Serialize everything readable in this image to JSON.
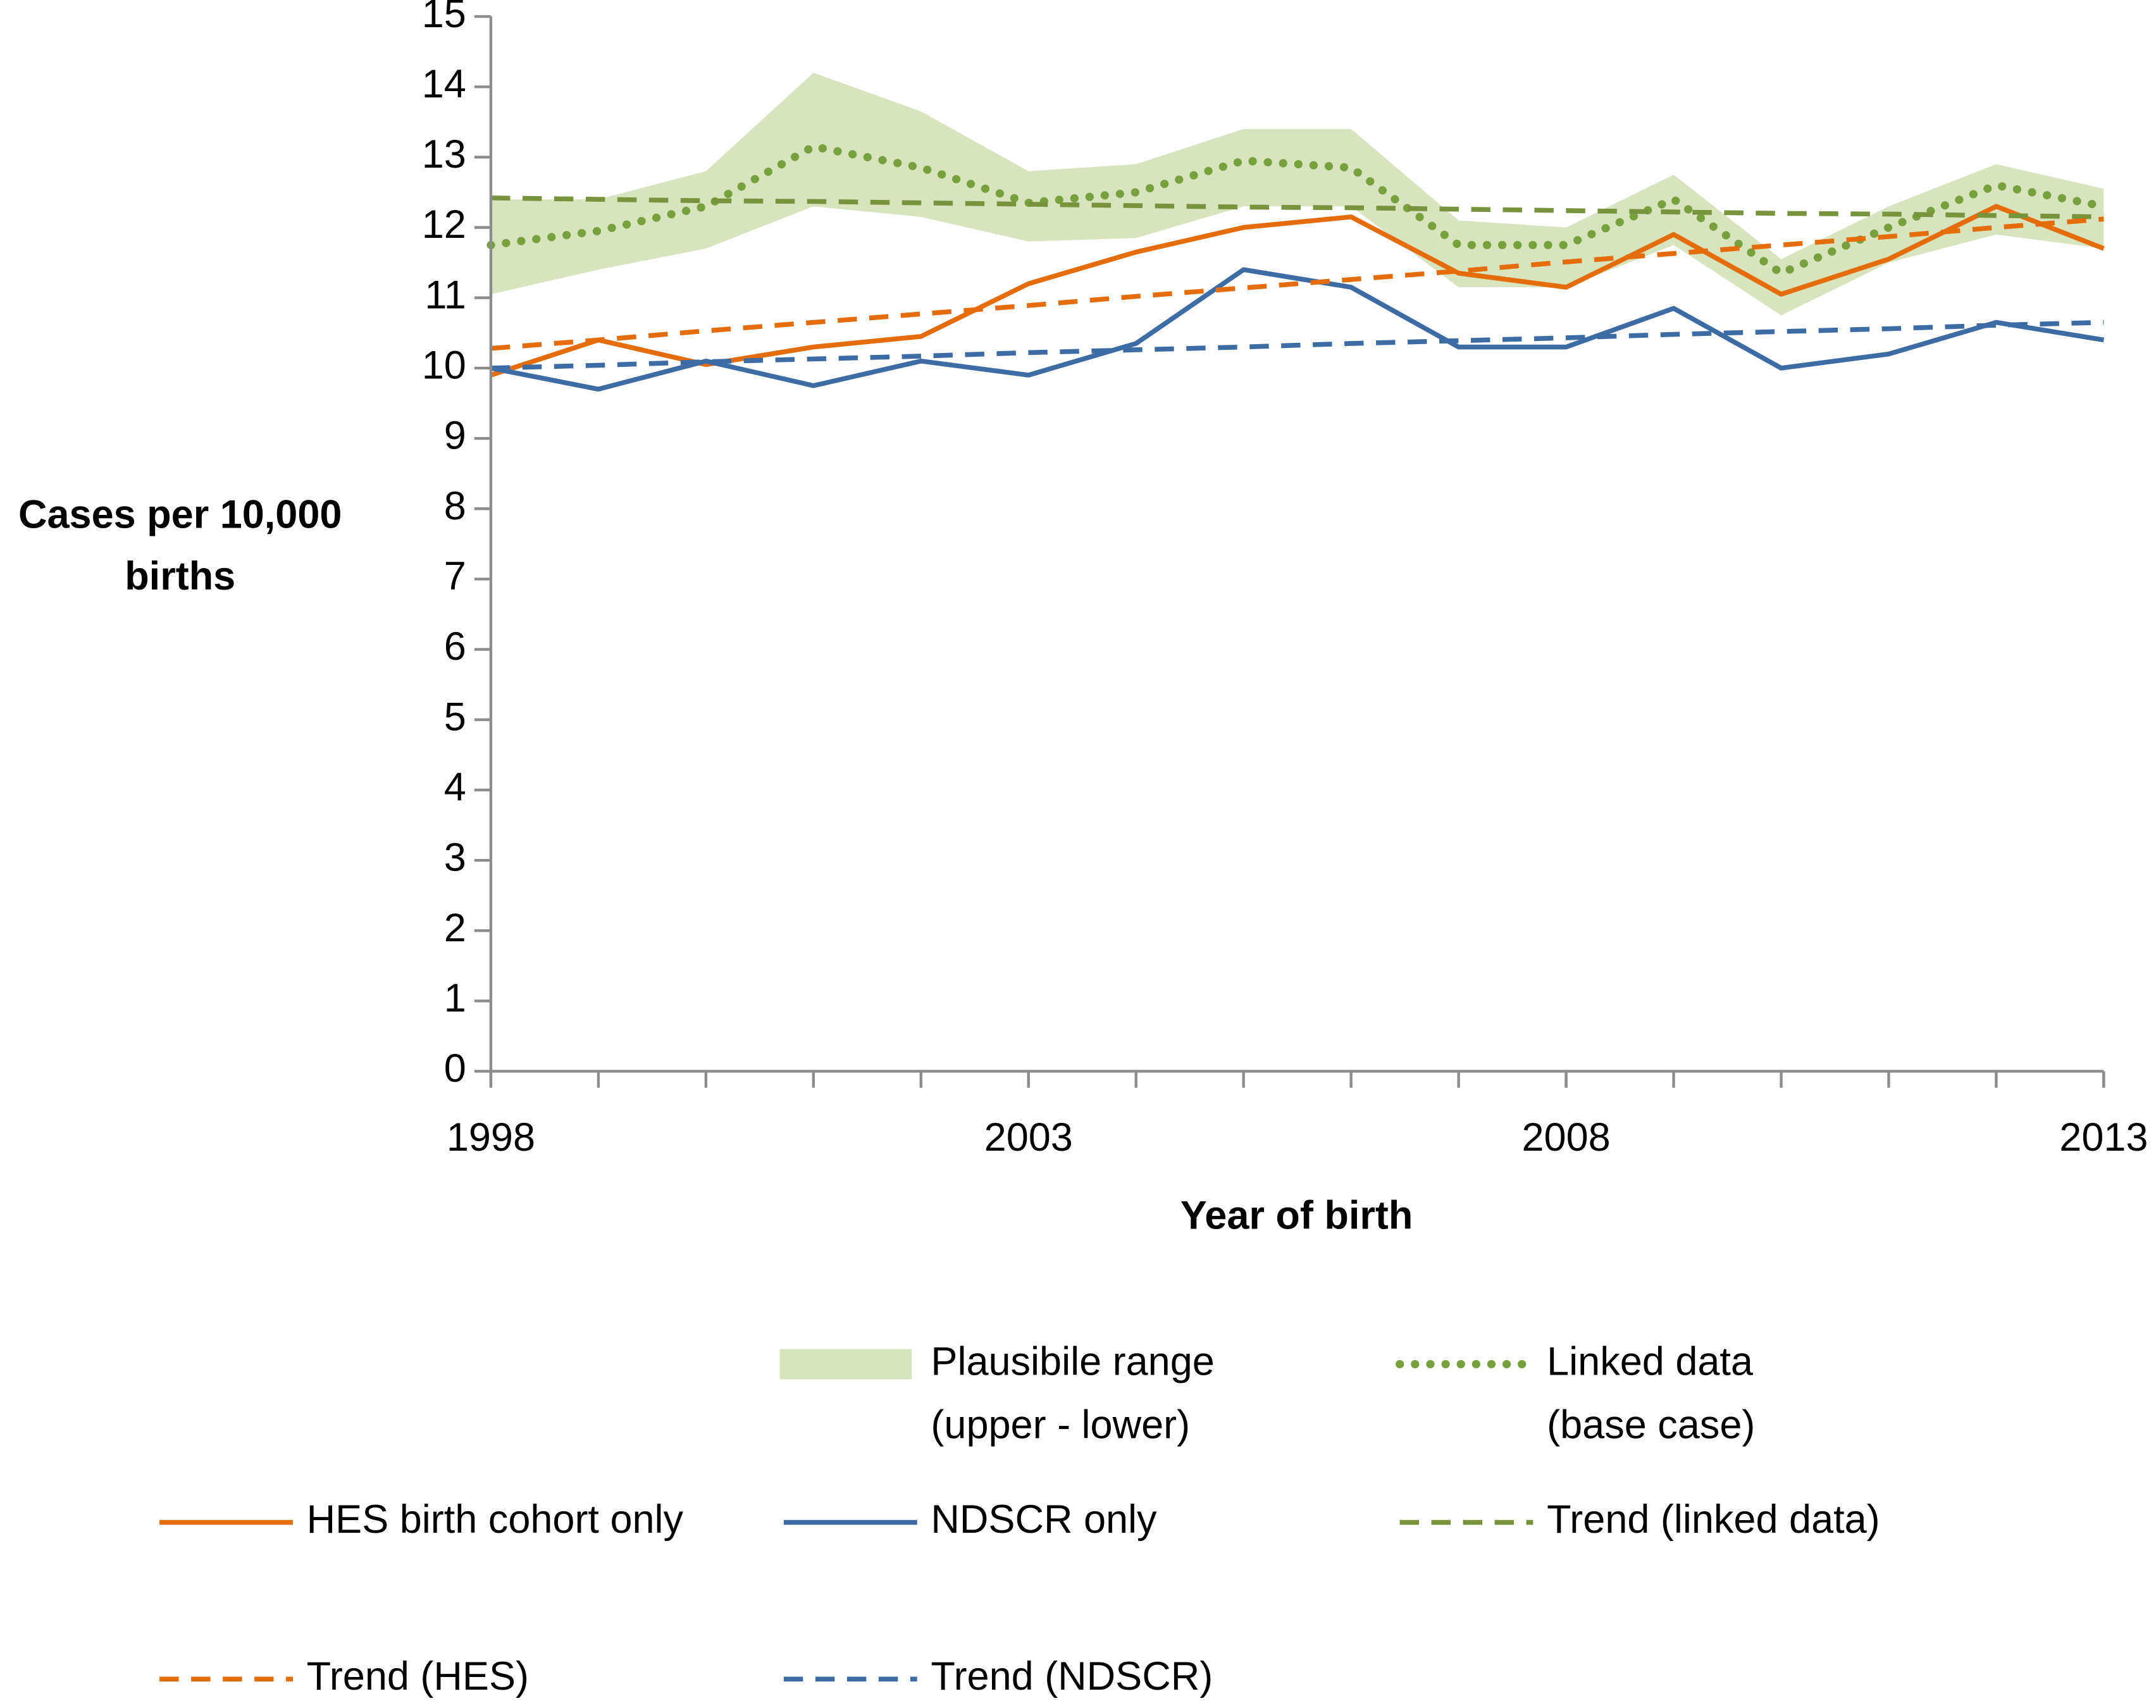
{
  "chart_data": {
    "type": "line",
    "x_label": "Year of birth",
    "y_label": "Cases per 10,000 births",
    "x": [
      1998,
      1999,
      2000,
      2001,
      2002,
      2003,
      2004,
      2005,
      2006,
      2007,
      2008,
      2009,
      2010,
      2011,
      2012,
      2013
    ],
    "xlim": [
      1998,
      2013
    ],
    "xticks": [
      1998,
      2003,
      2008,
      2013
    ],
    "ylim": [
      0,
      15
    ],
    "yticks": [
      0,
      1,
      2,
      3,
      4,
      5,
      6,
      7,
      8,
      9,
      10,
      11,
      12,
      13,
      14,
      15
    ],
    "grid": false,
    "series": [
      {
        "name": "Plausibile range (upper - lower)",
        "color": "#d7e4bd",
        "upper": [
          12.4,
          12.4,
          12.8,
          14.2,
          13.65,
          12.8,
          12.9,
          13.4,
          13.4,
          12.1,
          12.0,
          12.75,
          11.55,
          12.3,
          12.9,
          12.55
        ],
        "lower": [
          11.05,
          11.4,
          11.7,
          12.3,
          12.15,
          11.8,
          11.85,
          12.3,
          12.3,
          11.15,
          11.15,
          11.75,
          10.75,
          11.5,
          11.9,
          11.7
        ]
      },
      {
        "name": "Linked data (base case)",
        "color": "#77a13c",
        "style": "dotted",
        "values": [
          11.75,
          11.95,
          12.3,
          13.15,
          12.85,
          12.35,
          12.5,
          12.95,
          12.85,
          11.75,
          11.75,
          12.4,
          11.35,
          12.0,
          12.6,
          12.3
        ]
      },
      {
        "name": "HES birth cohort only",
        "color": "#e46c0a",
        "style": "solid",
        "values": [
          9.9,
          10.4,
          10.05,
          10.3,
          10.45,
          11.2,
          11.65,
          12.0,
          12.15,
          11.35,
          11.15,
          11.9,
          11.05,
          11.55,
          12.3,
          11.7
        ]
      },
      {
        "name": "NDSCR only",
        "color": "#3d6ca5",
        "style": "solid",
        "values": [
          10.0,
          9.7,
          10.1,
          9.75,
          10.1,
          9.9,
          10.35,
          11.4,
          11.15,
          10.3,
          10.3,
          10.85,
          10.0,
          10.2,
          10.65,
          10.4
        ]
      },
      {
        "name": "Trend (linked data)",
        "color": "#77933c",
        "style": "dashed",
        "values": [
          12.42,
          12.4,
          12.38,
          12.37,
          12.35,
          12.33,
          12.31,
          12.29,
          12.28,
          12.26,
          12.24,
          12.22,
          12.2,
          12.19,
          12.17,
          12.15
        ]
      },
      {
        "name": "Trend (HES)",
        "color": "#e46c0a",
        "style": "dashed",
        "values": [
          10.28,
          10.4,
          10.53,
          10.65,
          10.77,
          10.89,
          11.02,
          11.14,
          11.26,
          11.38,
          11.51,
          11.63,
          11.75,
          11.87,
          12.0,
          12.12
        ]
      },
      {
        "name": "Trend (NDSCR)",
        "color": "#3d6ca5",
        "style": "dashed",
        "values": [
          10.0,
          10.04,
          10.09,
          10.13,
          10.17,
          10.22,
          10.26,
          10.3,
          10.35,
          10.39,
          10.43,
          10.48,
          10.52,
          10.56,
          10.61,
          10.65
        ]
      }
    ]
  }
}
